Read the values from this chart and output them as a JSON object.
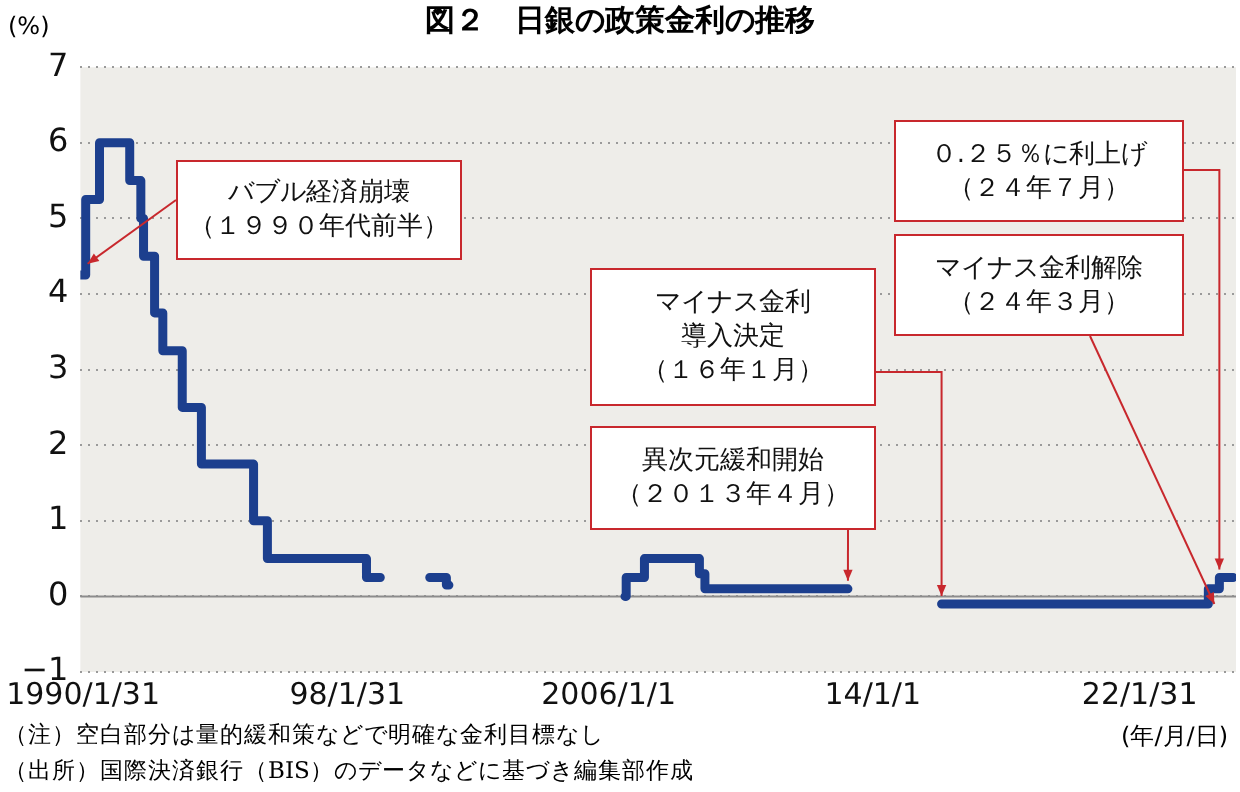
{
  "chart_data": {
    "type": "step",
    "title": "図２　日銀の政策金利の推移",
    "ylabel": "(%)",
    "xlabel": "(年/月/日)",
    "x": [
      "1990-01",
      "1990-03",
      "1990-08",
      "1991-07",
      "1991-11",
      "1991-12",
      "1992-04",
      "1992-07",
      "1993-02",
      "1993-09",
      "1995-04",
      "1995-09",
      "1998-09",
      "1999-02",
      "1999-03",
      "2000-08",
      "2001-02",
      "2001-03",
      "2001-04",
      "2006-07",
      "2006-07-14",
      "2007-02",
      "2008-10",
      "2008-12",
      "2013-04",
      "2013-05",
      "2016-02",
      "2024-03",
      "2024-07",
      "2024-12"
    ],
    "values": [
      4.25,
      5.25,
      6.0,
      5.5,
      5.0,
      4.5,
      3.75,
      3.25,
      2.5,
      1.75,
      1.0,
      0.5,
      0.25,
      0.25,
      null,
      0.25,
      0.15,
      0.15,
      null,
      0,
      0.25,
      0.5,
      0.3,
      0.1,
      0.1,
      null,
      -0.1,
      0.1,
      0.25,
      0.25
    ],
    "color": "#1c3f8e",
    "marker": "none",
    "xlim": [
      "1990-01-01",
      "2025-01-01"
    ],
    "xticks": [
      {
        "value": "1990-01-31",
        "label": "1990/1/31"
      },
      {
        "value": "1998-01-31",
        "label": "98/1/31"
      },
      {
        "value": "2006-01-01",
        "label": "2006/1/1"
      },
      {
        "value": "2014-01-01",
        "label": "14/1/1"
      },
      {
        "value": "2022-01-31",
        "label": "22/1/31"
      }
    ],
    "ylim": [
      -1,
      7
    ],
    "yticks": [
      -1,
      0,
      1,
      2,
      3,
      4,
      5,
      6,
      7
    ],
    "grid": "y",
    "legend": false,
    "ref_lines": [
      {
        "axis": "y",
        "value": 0,
        "color": "#8c8c8c"
      }
    ],
    "annotations": [
      {
        "text": "バブル経済崩壊（１９９０年代前半）",
        "x": "1990-01-15",
        "y": 4.4
      },
      {
        "text": "異次元緩和開始（２０１３年４月）",
        "x": "2013-04",
        "y": 0.1
      },
      {
        "text": "マイナス金利導入決定（１６年１月）",
        "x": "2016-02",
        "y": -0.1
      },
      {
        "text": "マイナス金利解除（２４年３月）",
        "x": "2024-03",
        "y": -0.1
      },
      {
        "text": "０.２５％に利上げ（２４年７月）",
        "x": "2024-07",
        "y": 0.25
      },
      "（注）空白部分は量的緩和策などで明確な金利目標なし",
      "（出所）国際決済銀行（BIS）のデータなどに基づき編集部作成"
    ]
  }
}
